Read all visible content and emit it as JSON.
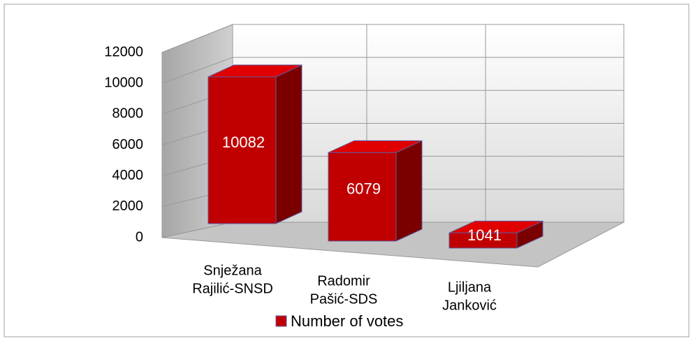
{
  "chart_data": {
    "type": "bar3d",
    "categories": [
      [
        "Snježana",
        "Rajilić-SNSD"
      ],
      [
        "Radomir",
        "Pašić-SDS"
      ],
      [
        "Ljiljana",
        "Janković"
      ]
    ],
    "series": [
      {
        "name": "Number of votes",
        "color": "#c00000",
        "values": [
          10082,
          6079,
          1041
        ]
      }
    ],
    "ylim": [
      0,
      12000
    ],
    "yticks": [
      0,
      2000,
      4000,
      6000,
      8000,
      10000,
      12000
    ],
    "grid": true,
    "legend": "bottom"
  }
}
